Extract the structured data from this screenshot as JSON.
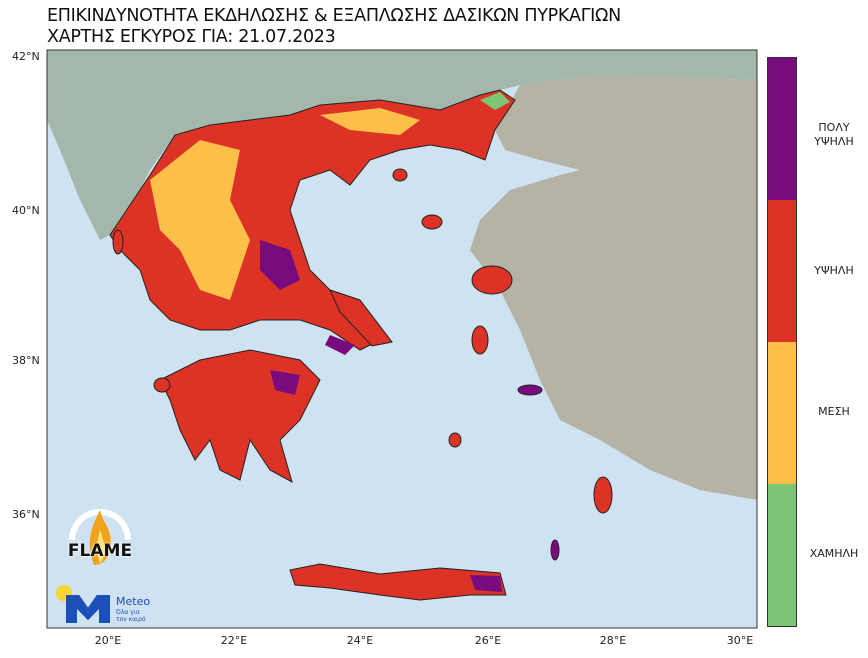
{
  "title": {
    "line1": "ΕΠΙΚΙΝΔΥΝΟΤΗΤΑ ΕΚΔΗΛΩΣΗΣ & ΕΞΑΠΛΩΣΗΣ ΔΑΣΙΚΩΝ ΠΥΡΚΑΓΙΩΝ",
    "line2": "ΧΑΡΤΗΣ ΕΓΚΥΡΟΣ ΓΙΑ: 21.07.2023"
  },
  "axes": {
    "lat_ticks": [
      "42°N",
      "40°N",
      "38°N",
      "36°N"
    ],
    "lon_ticks": [
      "20°E",
      "22°E",
      "24°E",
      "26°E",
      "28°E",
      "30°E"
    ]
  },
  "legend": {
    "items": [
      {
        "label_1": "ΠΟΛΥ",
        "label_2": "ΥΨΗΛΗ",
        "color": "#7a0b7e"
      },
      {
        "label_1": "ΥΨΗΛΗ",
        "color": "#dd3226"
      },
      {
        "label_1": "ΜΕΣΗ",
        "color": "#fcbf4a"
      },
      {
        "label_1": "ΧΑΜΗΛΗ",
        "color": "#7cc676"
      }
    ]
  },
  "colors": {
    "sea": "#c9def0",
    "terrain": "#9fb3a6"
  },
  "logos": {
    "flame": "FLAME",
    "flame_ring": "EXTREME FIRE WEATHER & FIRE BEHAVIOUR",
    "meteo": "Meteo",
    "meteo_tagline_1": "Όλα για",
    "meteo_tagline_2": "τον καιρό"
  }
}
